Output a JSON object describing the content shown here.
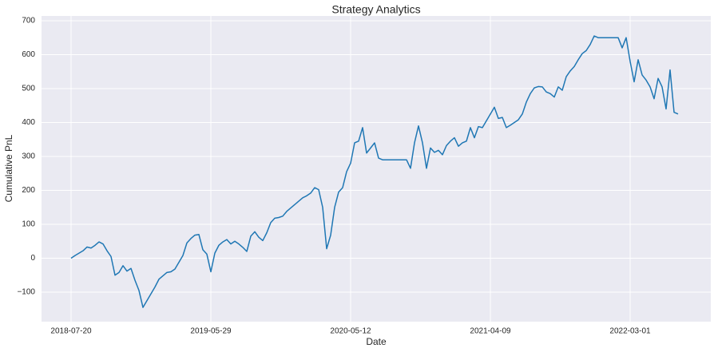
{
  "chart_data": {
    "type": "line",
    "title": "Strategy Analytics",
    "xlabel": "Date",
    "ylabel": "Cumulative PnL",
    "categories": [
      "2018-07-20",
      null,
      null,
      null,
      null,
      null,
      null,
      null,
      null,
      null,
      null,
      null,
      null,
      null,
      null,
      null,
      null,
      null,
      null,
      null,
      null,
      null,
      null,
      null,
      null,
      null,
      null,
      null,
      null,
      null,
      null,
      null,
      null,
      null,
      null,
      "2019-05-29",
      null,
      null,
      null,
      null,
      null,
      null,
      null,
      null,
      null,
      null,
      null,
      null,
      null,
      null,
      null,
      null,
      null,
      null,
      null,
      null,
      null,
      null,
      null,
      null,
      null,
      null,
      null,
      null,
      null,
      null,
      null,
      null,
      null,
      null,
      "2020-05-12",
      null,
      null,
      null,
      null,
      null,
      null,
      null,
      null,
      null,
      null,
      null,
      null,
      null,
      null,
      null,
      null,
      null,
      null,
      null,
      null,
      null,
      null,
      null,
      null,
      null,
      null,
      null,
      null,
      null,
      null,
      null,
      null,
      null,
      null,
      "2021-04-09",
      null,
      null,
      null,
      null,
      null,
      null,
      null,
      null,
      null,
      null,
      null,
      null,
      null,
      null,
      null,
      null,
      null,
      null,
      null,
      null,
      null,
      null,
      null,
      null,
      null,
      null,
      null,
      null,
      null,
      null,
      null,
      null,
      null,
      null,
      "2022-03-01",
      null,
      null,
      null,
      null,
      null,
      null,
      null,
      null,
      null,
      null,
      null,
      null
    ],
    "values": [
      0,
      8,
      15,
      22,
      33,
      30,
      38,
      48,
      42,
      22,
      5,
      -50,
      -42,
      -22,
      -38,
      -30,
      -65,
      -95,
      -145,
      -125,
      -105,
      -85,
      -62,
      -52,
      -42,
      -40,
      -32,
      -12,
      8,
      45,
      58,
      68,
      70,
      25,
      12,
      -40,
      15,
      38,
      48,
      55,
      42,
      50,
      42,
      32,
      20,
      65,
      78,
      62,
      52,
      75,
      105,
      118,
      120,
      124,
      138,
      148,
      158,
      168,
      178,
      184,
      192,
      208,
      202,
      150,
      28,
      68,
      150,
      195,
      208,
      255,
      280,
      340,
      345,
      385,
      310,
      325,
      340,
      295,
      290,
      290,
      290,
      290,
      290,
      290,
      290,
      265,
      340,
      390,
      340,
      265,
      325,
      312,
      318,
      305,
      332,
      345,
      355,
      330,
      340,
      345,
      385,
      355,
      388,
      385,
      405,
      425,
      445,
      412,
      415,
      385,
      392,
      400,
      408,
      425,
      460,
      485,
      502,
      506,
      505,
      490,
      485,
      475,
      505,
      495,
      535,
      552,
      565,
      585,
      603,
      612,
      630,
      655,
      650,
      650,
      650,
      650,
      650,
      650,
      620,
      650,
      580,
      520,
      585,
      540,
      525,
      505,
      470,
      530,
      505,
      440,
      555,
      430,
      425
    ],
    "color": "#1f77b4",
    "ylim": [
      -187,
      714
    ],
    "yticks": [
      {
        "value": -100,
        "label": "−100"
      },
      0,
      100,
      200,
      300,
      400,
      500,
      600,
      700
    ],
    "grid": true
  }
}
